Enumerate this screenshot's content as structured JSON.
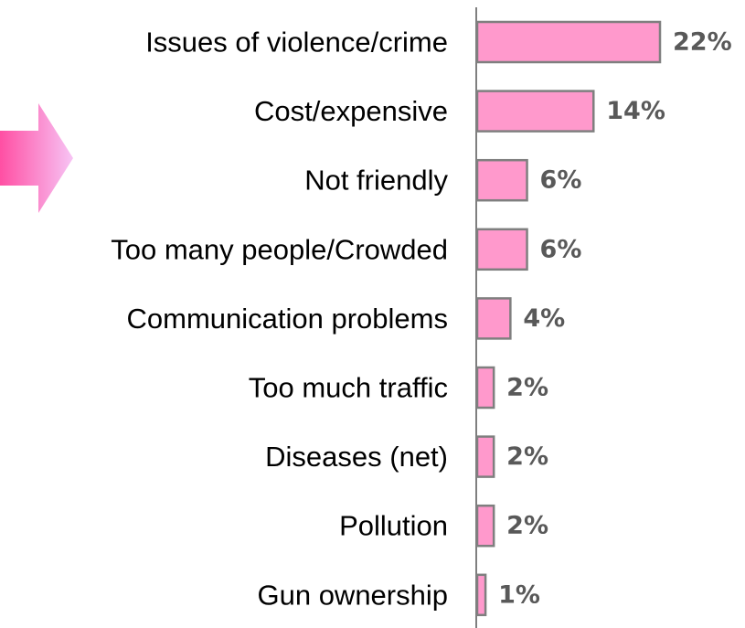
{
  "chart_data": {
    "type": "bar",
    "orientation": "horizontal",
    "categories": [
      "Issues of violence/crime",
      "Cost/expensive",
      "Not friendly",
      "Too many people/Crowded",
      "Communication problems",
      "Too much traffic",
      "Diseases (net)",
      "Pollution",
      "Gun ownership"
    ],
    "values": [
      22,
      14,
      6,
      6,
      4,
      2,
      2,
      2,
      1
    ],
    "value_labels": [
      "22%",
      "14%",
      "6%",
      "6%",
      "4%",
      "2%",
      "2%",
      "2%",
      "1%"
    ],
    "unit": "%",
    "xlim": [
      0,
      22
    ],
    "grid": false,
    "legend": "none",
    "colors": {
      "bar_fill": "#ff99cc",
      "bar_stroke": "#7f7f7f",
      "value_text": "#595959",
      "arrow_start": "#ff4fa3",
      "arrow_end": "#f7c4f5"
    },
    "decorations": [
      "arrow-icon"
    ]
  }
}
